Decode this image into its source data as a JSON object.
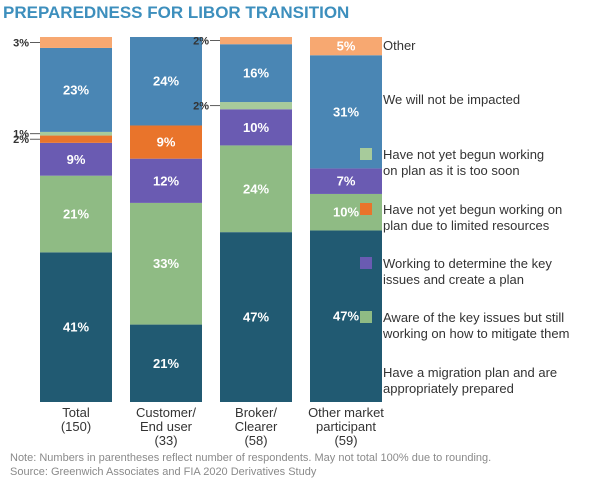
{
  "chart_data": {
    "type": "bar",
    "stacked": true,
    "title": "PREPAREDNESS FOR LIBOR TRANSITION",
    "categories": [
      [
        "Total",
        "(150)"
      ],
      [
        "Customer/",
        "End user",
        "(33)"
      ],
      [
        "Broker/",
        "Clearer",
        "(58)"
      ],
      [
        "Other market",
        "participant",
        "(59)"
      ]
    ],
    "series": [
      {
        "name": "Have a migration plan and are appropriately prepared",
        "legend_lines": [
          "Have a migration plan and are",
          "appropriately prepared"
        ],
        "color": "#215a72",
        "values": [
          41,
          21,
          47,
          47
        ]
      },
      {
        "name": "Aware of the key issues but still working on how to mitigate them",
        "legend_lines": [
          "Aware of the key issues but still",
          "working on how to mitigate them"
        ],
        "color": "#8fbb84",
        "values": [
          21,
          33,
          24,
          10
        ]
      },
      {
        "name": "Working to determine the key issues and create a plan",
        "legend_lines": [
          "Working to determine the key",
          "issues and create a plan"
        ],
        "color": "#6a5bb2",
        "values": [
          9,
          12,
          10,
          7
        ]
      },
      {
        "name": "Have not yet begun working on plan due to limited resources",
        "legend_lines": [
          "Have not yet begun working on",
          "plan due to limited resources"
        ],
        "color": "#e9742b",
        "values": [
          2,
          9,
          0,
          0
        ]
      },
      {
        "name": "Have not yet begun working on plan as it is too soon",
        "legend_lines": [
          "Have not yet begun working",
          "on plan as it is too soon"
        ],
        "color": "#a7cb9b",
        "values": [
          1,
          0,
          2,
          0
        ]
      },
      {
        "name": "We will not be impacted",
        "legend_lines": [
          "We will not be impacted"
        ],
        "color": "#4a86b4",
        "values": [
          23,
          24,
          16,
          31
        ]
      },
      {
        "name": "Other",
        "legend_lines": [
          "Other"
        ],
        "color": "#f7a871",
        "values": [
          3,
          0,
          2,
          5
        ]
      }
    ],
    "data_labels": [
      [
        "41%",
        "21%",
        "9%",
        "2%",
        "1%",
        "23%",
        "3%"
      ],
      [
        "21%",
        "33%",
        "12%",
        "9%",
        "",
        "24%",
        ""
      ],
      [
        "47%",
        "24%",
        "10%",
        "",
        "2%",
        "16%",
        "2%"
      ],
      [
        "47%",
        "10%",
        "7%",
        "",
        "",
        "31%",
        "5%"
      ]
    ],
    "ylim": [
      0,
      100
    ],
    "legend_position": "right",
    "grid": false
  },
  "footnote": {
    "line1": "Note: Numbers in parentheses reflect number of respondents. May not total 100% due to rounding.",
    "line2": "Source: Greenwich Associates and FIA 2020 Derivatives Study"
  },
  "colors": {
    "title": "#3d8fbd",
    "text": "#333333",
    "label_light": "#ffffff",
    "label_orange": "#ffffff"
  }
}
